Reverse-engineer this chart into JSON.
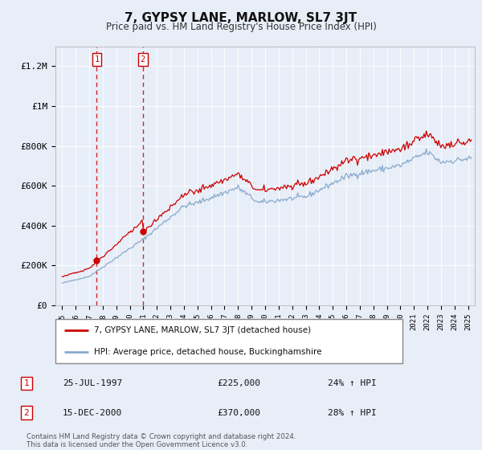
{
  "title": "7, GYPSY LANE, MARLOW, SL7 3JT",
  "subtitle": "Price paid vs. HM Land Registry's House Price Index (HPI)",
  "line1_label": "7, GYPSY LANE, MARLOW, SL7 3JT (detached house)",
  "line2_label": "HPI: Average price, detached house, Buckinghamshire",
  "line1_color": "#cc0000",
  "line2_color": "#88aacc",
  "bg_color": "#e8eef8",
  "ylim": [
    0,
    1300000
  ],
  "yticks": [
    0,
    200000,
    400000,
    600000,
    800000,
    1000000,
    1200000
  ],
  "ytick_labels": [
    "£0",
    "£200K",
    "£400K",
    "£600K",
    "£800K",
    "£1M",
    "£1.2M"
  ],
  "xmin": 1994.5,
  "xmax": 2025.5,
  "sales": [
    {
      "num": 1,
      "date": "25-JUL-1997",
      "price": 225000,
      "pct": "24%",
      "dir": "↑",
      "year": 1997.55
    },
    {
      "num": 2,
      "date": "15-DEC-2000",
      "price": 370000,
      "pct": "28%",
      "dir": "↑",
      "year": 2000.96
    }
  ],
  "footer": "Contains HM Land Registry data © Crown copyright and database right 2024.\nThis data is licensed under the Open Government Licence v3.0."
}
